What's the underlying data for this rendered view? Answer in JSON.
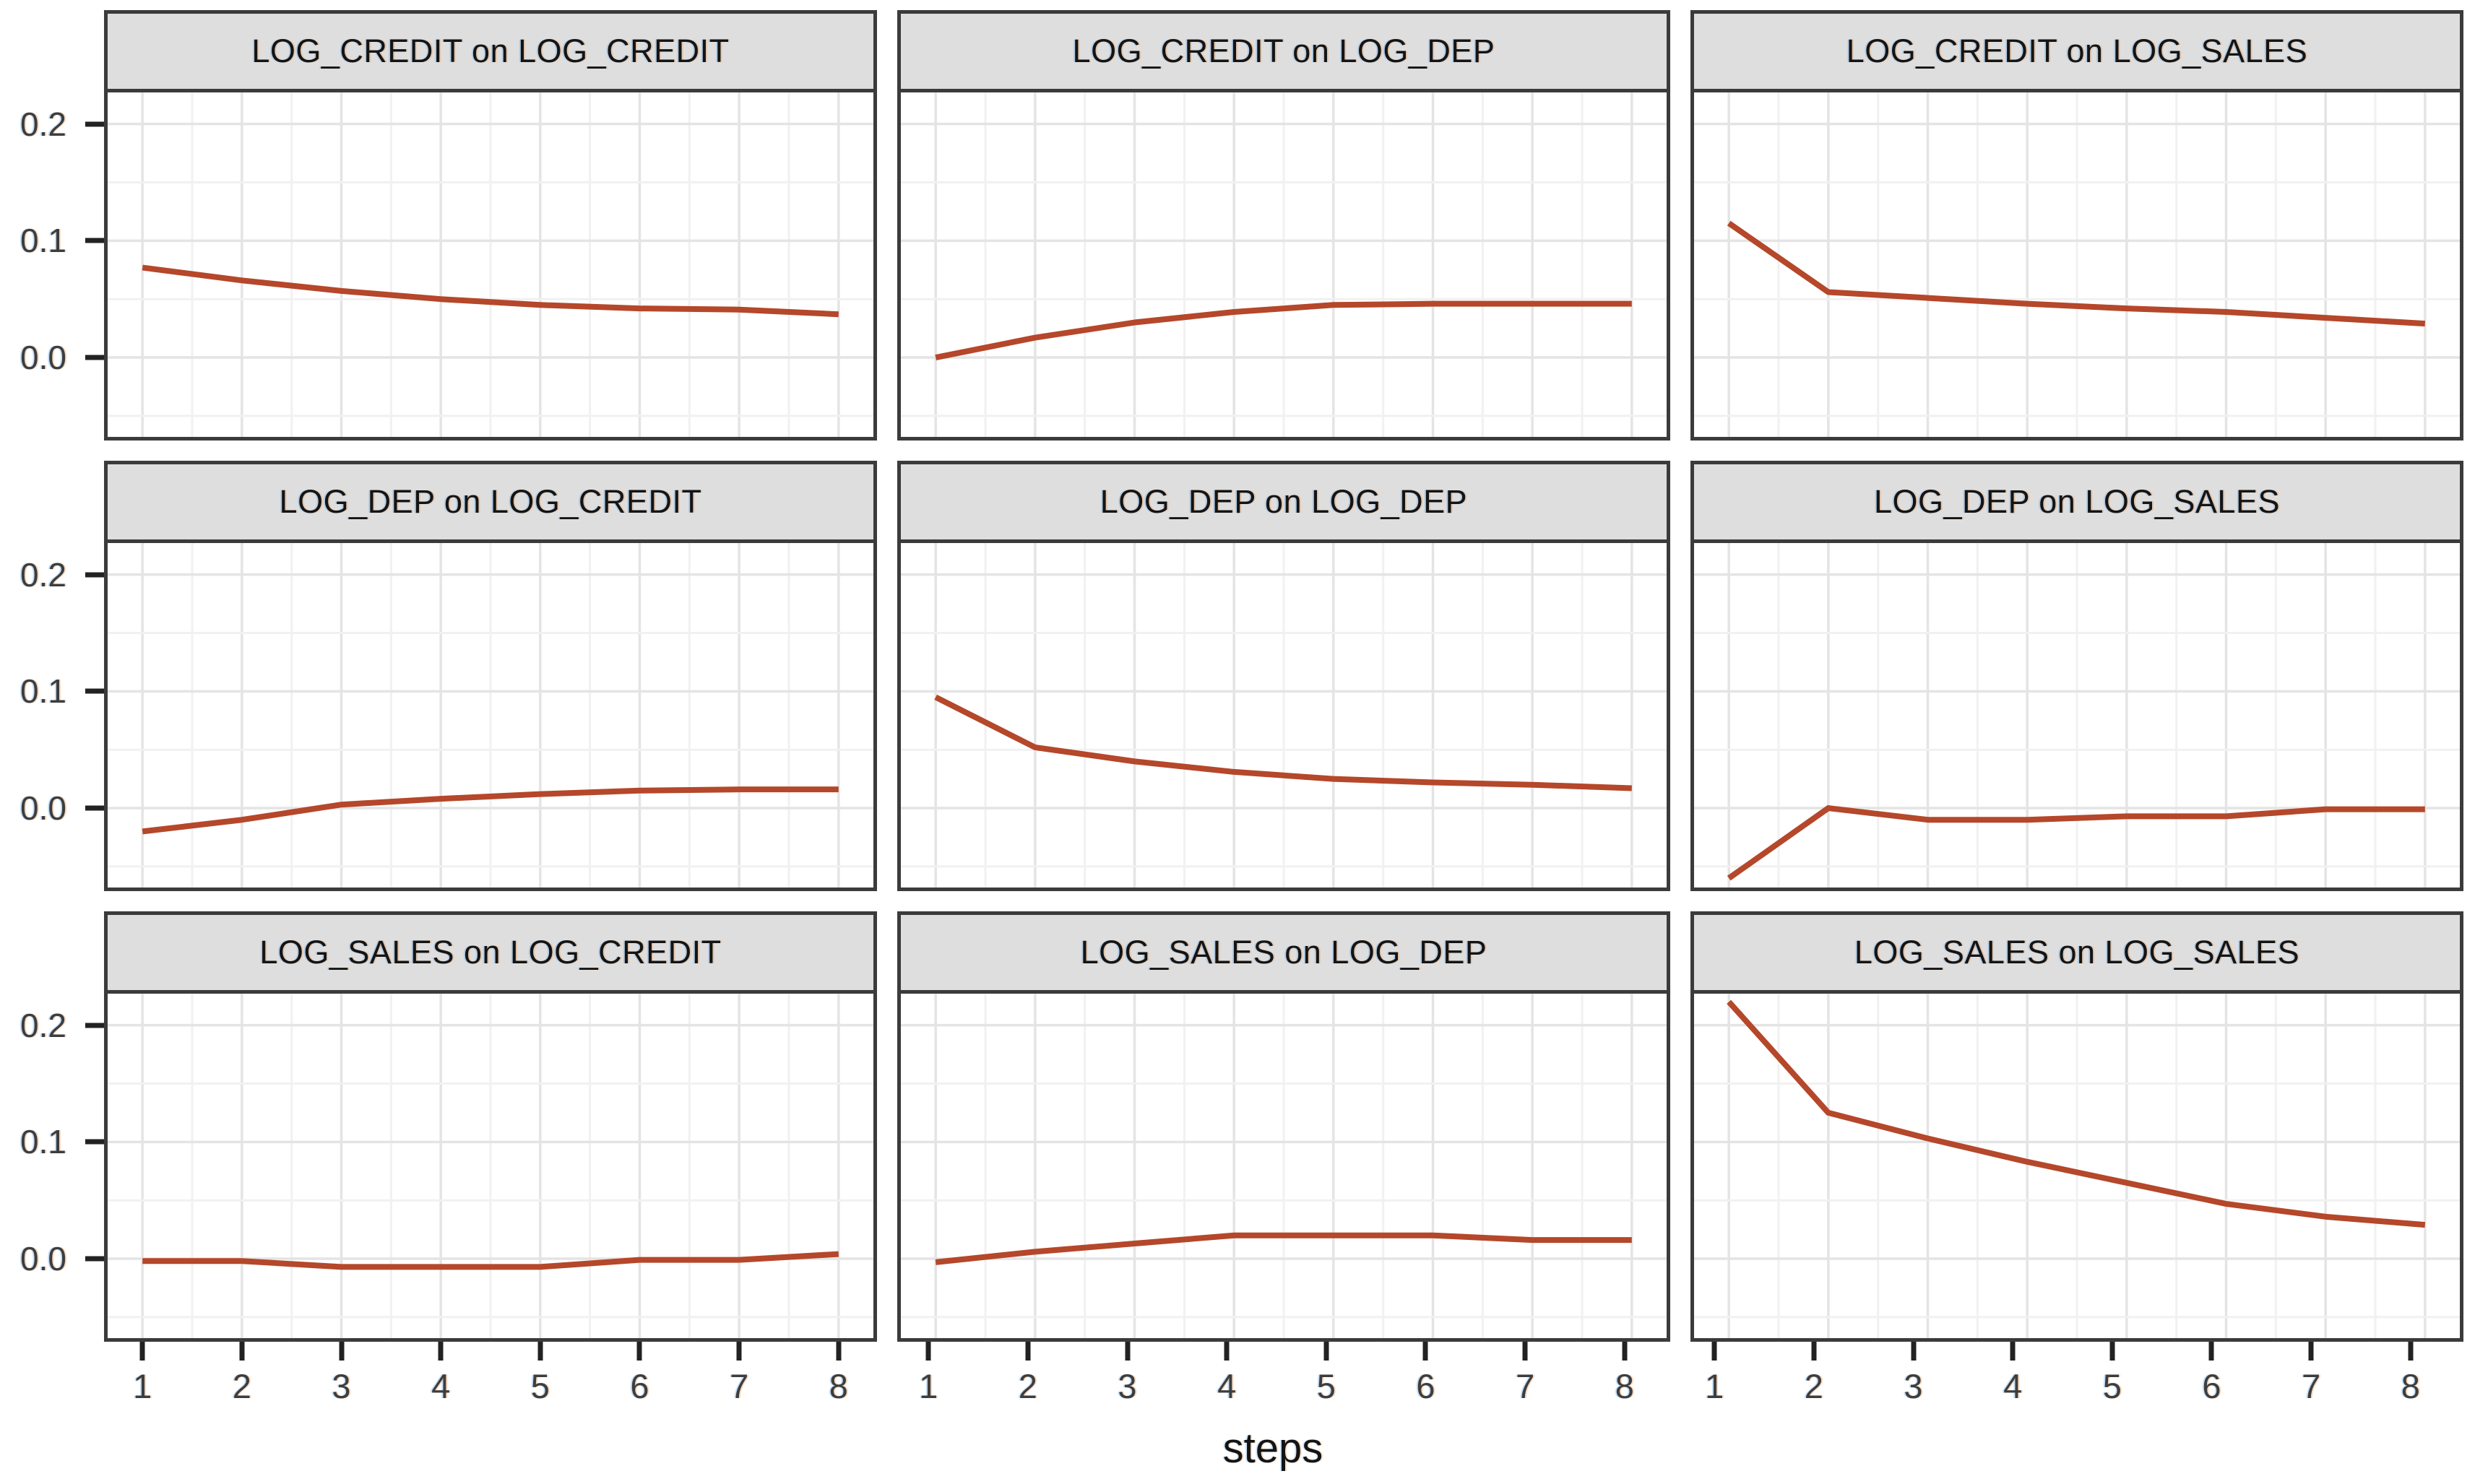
{
  "figure": {
    "xlabel": "steps",
    "x_tick_labels": [
      "1",
      "2",
      "3",
      "4",
      "5",
      "6",
      "7",
      "8"
    ],
    "y_tick_labels": [
      "0.2",
      "0.1",
      "0.0"
    ]
  },
  "colors": {
    "line": "#b5472a",
    "strip_background": "#dedede",
    "panel_border": "#3b3b3b",
    "grid_major": "#e4e4e4",
    "grid_minor": "#f1f1f1",
    "axis_text": "#3d3d3d",
    "tick_mark": "#222222"
  },
  "chart_data": {
    "type": "line",
    "layout": "3x3-facet-grid",
    "title": "",
    "xlabel": "steps",
    "ylabel": "",
    "x": [
      1,
      2,
      3,
      4,
      5,
      6,
      7,
      8
    ],
    "xlim": [
      0.65,
      8.35
    ],
    "ylim": [
      -0.068,
      0.227
    ],
    "y_ticks": [
      0.2,
      0.1,
      0.0
    ],
    "y_minor_ticks": [
      0.15,
      0.05,
      -0.05
    ],
    "grid": "on",
    "legend": "none",
    "line_color": "#b5472a",
    "facet_rows": [
      "LOG_CREDIT",
      "LOG_DEP",
      "LOG_SALES"
    ],
    "facet_cols": [
      "LOG_CREDIT",
      "LOG_DEP",
      "LOG_SALES"
    ],
    "facets": [
      {
        "row": 1,
        "col": 1,
        "title": "LOG_CREDIT on LOG_CREDIT",
        "values": [
          0.077,
          0.066,
          0.057,
          0.05,
          0.045,
          0.042,
          0.041,
          0.037
        ]
      },
      {
        "row": 1,
        "col": 2,
        "title": "LOG_CREDIT on LOG_DEP",
        "values": [
          0.0,
          0.017,
          0.03,
          0.039,
          0.045,
          0.046,
          0.046,
          0.046
        ]
      },
      {
        "row": 1,
        "col": 3,
        "title": "LOG_CREDIT on LOG_SALES",
        "values": [
          0.115,
          0.056,
          0.051,
          0.046,
          0.042,
          0.039,
          0.034,
          0.029
        ]
      },
      {
        "row": 2,
        "col": 1,
        "title": "LOG_DEP on LOG_CREDIT",
        "values": [
          -0.02,
          -0.01,
          0.003,
          0.008,
          0.012,
          0.015,
          0.016,
          0.016
        ]
      },
      {
        "row": 2,
        "col": 2,
        "title": "LOG_DEP on LOG_DEP",
        "values": [
          0.095,
          0.052,
          0.04,
          0.031,
          0.025,
          0.022,
          0.02,
          0.017
        ]
      },
      {
        "row": 2,
        "col": 3,
        "title": "LOG_DEP on LOG_SALES",
        "values": [
          -0.06,
          0.0,
          -0.01,
          -0.01,
          -0.007,
          -0.007,
          -0.001,
          -0.001
        ]
      },
      {
        "row": 3,
        "col": 1,
        "title": "LOG_SALES on LOG_CREDIT",
        "values": [
          -0.002,
          -0.002,
          -0.007,
          -0.007,
          -0.007,
          -0.001,
          -0.001,
          0.004
        ]
      },
      {
        "row": 3,
        "col": 2,
        "title": "LOG_SALES on LOG_DEP",
        "values": [
          -0.003,
          0.006,
          0.013,
          0.02,
          0.02,
          0.02,
          0.016,
          0.016
        ]
      },
      {
        "row": 3,
        "col": 3,
        "title": "LOG_SALES on LOG_SALES",
        "values": [
          0.22,
          0.125,
          0.103,
          0.083,
          0.065,
          0.047,
          0.036,
          0.029
        ]
      }
    ]
  }
}
